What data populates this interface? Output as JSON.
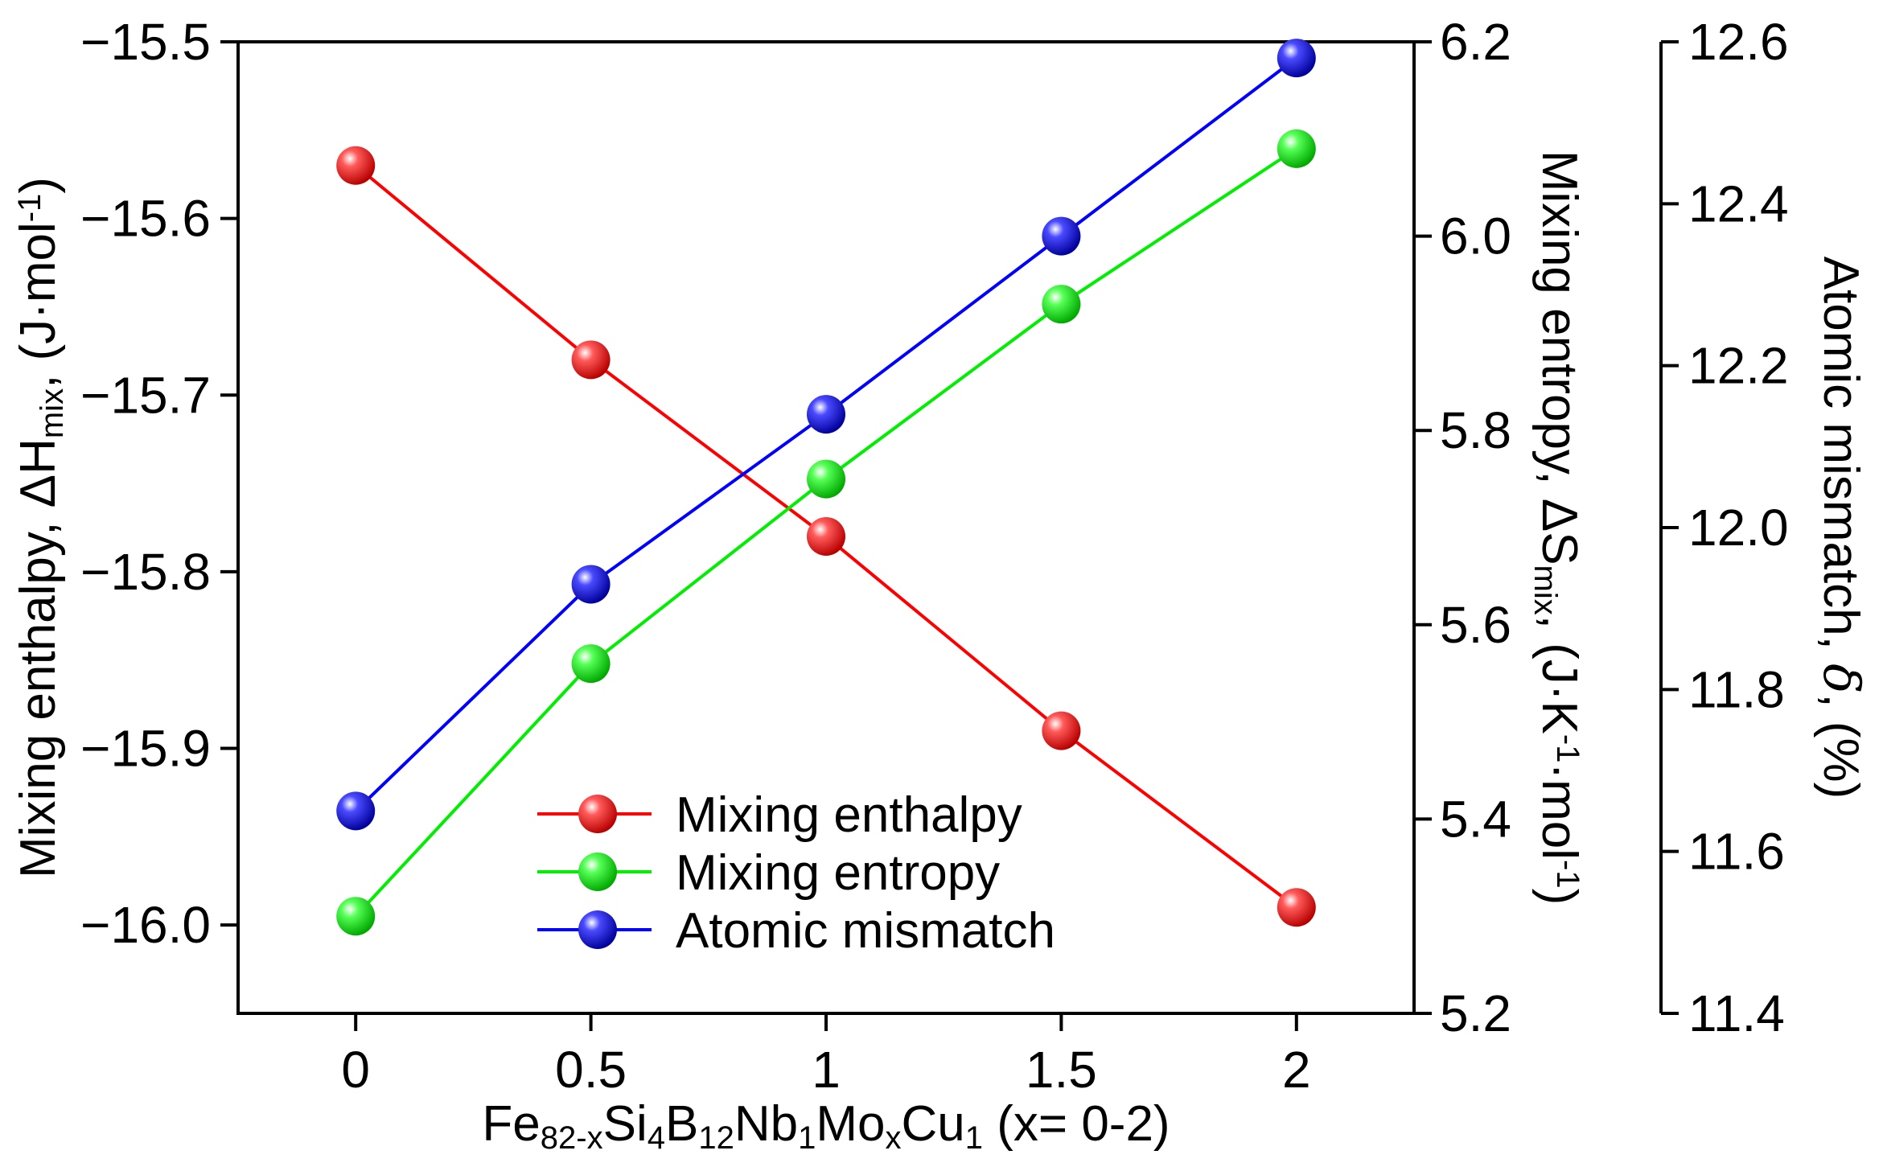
{
  "chart_data": {
    "type": "line",
    "x": [
      0,
      0.5,
      1,
      1.5,
      2
    ],
    "x_tick_labels": [
      "0",
      "0.5",
      "1",
      "1.5",
      "2"
    ],
    "xlim": [
      -0.25,
      2.25
    ],
    "xlabel": {
      "parts": [
        {
          "t": "Fe",
          "s": "n"
        },
        {
          "t": "82-x",
          "s": "sub"
        },
        {
          "t": "Si",
          "s": "n"
        },
        {
          "t": "4",
          "s": "sub"
        },
        {
          "t": "B",
          "s": "n"
        },
        {
          "t": "12",
          "s": "sub"
        },
        {
          "t": "Nb",
          "s": "n"
        },
        {
          "t": "1",
          "s": "sub"
        },
        {
          "t": "Mo",
          "s": "n"
        },
        {
          "t": "x",
          "s": "sub"
        },
        {
          "t": "Cu",
          "s": "n"
        },
        {
          "t": "1",
          "s": "sub"
        },
        {
          "t": " (x= 0-2)",
          "s": "n"
        }
      ]
    },
    "axes": {
      "left": {
        "ylim": [
          -16.05,
          -15.5
        ],
        "ticks": [
          -16.0,
          -15.9,
          -15.8,
          -15.7,
          -15.6,
          -15.5
        ],
        "tick_labels": [
          "−16.0",
          "−15.9",
          "−15.8",
          "−15.7",
          "−15.6",
          "−15.5"
        ],
        "label": {
          "parts": [
            {
              "t": "Mixing enthalpy, ΔH",
              "s": "n"
            },
            {
              "t": "mix",
              "s": "sub"
            },
            {
              "t": ", (J·mol",
              "s": "n"
            },
            {
              "t": "-1",
              "s": "sup"
            },
            {
              "t": ")",
              "s": "n"
            }
          ]
        }
      },
      "right1": {
        "ylim": [
          5.2,
          6.2
        ],
        "ticks": [
          5.2,
          5.4,
          5.6,
          5.8,
          6.0,
          6.2
        ],
        "tick_labels": [
          "5.2",
          "5.4",
          "5.6",
          "5.8",
          "6.0",
          "6.2"
        ],
        "label": {
          "parts": [
            {
              "t": "Mixing entropy, ΔS",
              "s": "n"
            },
            {
              "t": "mix",
              "s": "sub"
            },
            {
              "t": ", (J·K",
              "s": "n"
            },
            {
              "t": "-1",
              "s": "sup"
            },
            {
              "t": "·mol",
              "s": "n"
            },
            {
              "t": "-1",
              "s": "sup"
            },
            {
              "t": ")",
              "s": "n"
            }
          ]
        }
      },
      "right2": {
        "ylim": [
          11.4,
          12.6
        ],
        "ticks": [
          11.4,
          11.6,
          11.8,
          12.0,
          12.2,
          12.4,
          12.6
        ],
        "tick_labels": [
          "11.4",
          "11.6",
          "11.8",
          "12.0",
          "12.2",
          "12.4",
          "12.6"
        ],
        "label": {
          "parts": [
            {
              "t": "Atomic mismatch, ",
              "s": "n"
            },
            {
              "t": "δ",
              "s": "it"
            },
            {
              "t": ", (%)",
              "s": "n"
            }
          ]
        }
      }
    },
    "series": [
      {
        "name": "Mixing enthalpy",
        "axis": "left",
        "color": "#ff0000",
        "values": [
          -15.57,
          -15.68,
          -15.78,
          -15.89,
          -15.99
        ]
      },
      {
        "name": "Mixing entropy",
        "axis": "right1",
        "color": "#00ee00",
        "values": [
          5.3,
          5.56,
          5.75,
          5.93,
          6.09
        ]
      },
      {
        "name": "Atomic mismatch",
        "axis": "right2",
        "color": "#0000ff",
        "values": [
          11.65,
          11.93,
          12.14,
          12.36,
          12.58
        ]
      }
    ],
    "legend": {
      "position": "bottom-center",
      "entries": [
        "Mixing enthalpy",
        "Mixing entropy",
        "Atomic mismatch"
      ]
    }
  }
}
